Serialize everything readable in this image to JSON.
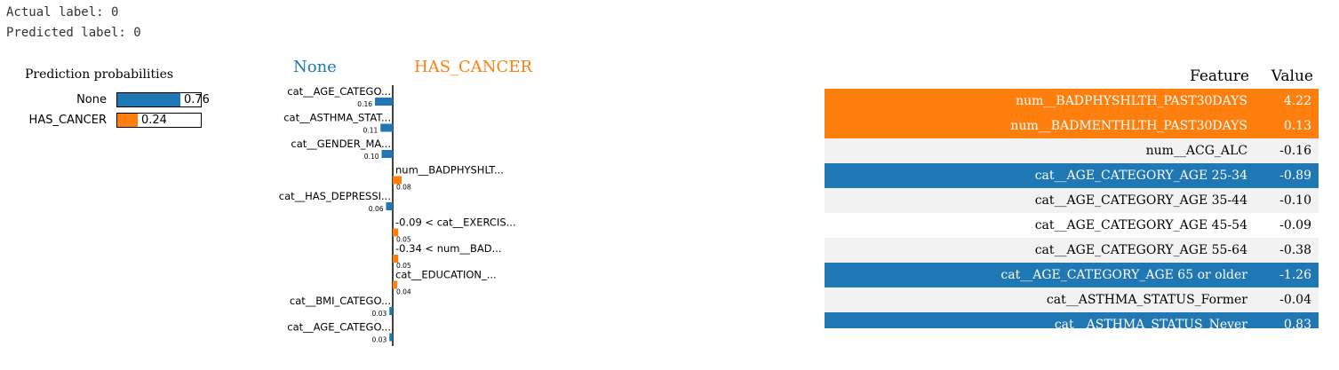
{
  "header": {
    "actual_label": "Actual label: 0",
    "predicted_label": "Predicted label: 0"
  },
  "colors": {
    "none": "#1f77b4",
    "has_cancer": "#ff7f0e",
    "row_light": "#f2f2f2",
    "row_white": "#ffffff"
  },
  "prediction_probabilities": {
    "title": "Prediction probabilities",
    "items": [
      {
        "label": "None",
        "value": 0.76,
        "text": "0.76"
      },
      {
        "label": "HAS_CANCER",
        "value": 0.24,
        "text": "0.24"
      }
    ]
  },
  "chart_data": {
    "type": "bar",
    "orientation": "horizontal",
    "left_class": "None",
    "right_class": "HAS_CANCER",
    "features": [
      {
        "label": "cat__AGE_CATEGO...",
        "value": -0.16,
        "value_label": "0.16"
      },
      {
        "label": "cat__ASTHMA_STAT...",
        "value": -0.11,
        "value_label": "0.11"
      },
      {
        "label": "cat__GENDER_MA...",
        "value": -0.1,
        "value_label": "0.10"
      },
      {
        "label": "num__BADPHYSHLT...",
        "value": 0.08,
        "value_label": "0.08"
      },
      {
        "label": "cat__HAS_DEPRESSI...",
        "value": -0.06,
        "value_label": "0.06"
      },
      {
        "label": "-0.09 < cat__EXERCIS...",
        "value": 0.05,
        "value_label": "0.05"
      },
      {
        "label": "-0.34 < num__BAD...",
        "value": 0.05,
        "value_label": "0.05"
      },
      {
        "label": "cat__EDUCATION_...",
        "value": 0.04,
        "value_label": "0.04"
      },
      {
        "label": "cat__BMI_CATEGO...",
        "value": -0.03,
        "value_label": "0.03"
      },
      {
        "label": "cat__AGE_CATEGO...",
        "value": -0.03,
        "value_label": "0.03"
      }
    ]
  },
  "feature_table": {
    "headers": {
      "feature": "Feature",
      "value": "Value"
    },
    "rows": [
      {
        "feature": "num__BADPHYSHLTH_PAST30DAYS",
        "value": "4.22",
        "highlight": "has_cancer"
      },
      {
        "feature": "num__BADMENTHLTH_PAST30DAYS",
        "value": "0.13",
        "highlight": "has_cancer"
      },
      {
        "feature": "num__ACG_ALC",
        "value": "-0.16",
        "highlight": "none_row"
      },
      {
        "feature": "cat__AGE_CATEGORY_AGE 25-34",
        "value": "-0.89",
        "highlight": "none"
      },
      {
        "feature": "cat__AGE_CATEGORY_AGE 35-44",
        "value": "-0.10",
        "highlight": "none_row"
      },
      {
        "feature": "cat__AGE_CATEGORY_AGE 45-54",
        "value": "-0.09",
        "highlight": "none_row"
      },
      {
        "feature": "cat__AGE_CATEGORY_AGE 55-64",
        "value": "-0.38",
        "highlight": "none_row"
      },
      {
        "feature": "cat__AGE_CATEGORY_AGE 65 or older",
        "value": "-1.26",
        "highlight": "none"
      },
      {
        "feature": "cat__ASTHMA_STATUS_Former",
        "value": "-0.04",
        "highlight": "none_row"
      },
      {
        "feature": "cat__ASTHMA_STATUS_Never",
        "value": "0.83",
        "highlight": "none"
      }
    ]
  }
}
